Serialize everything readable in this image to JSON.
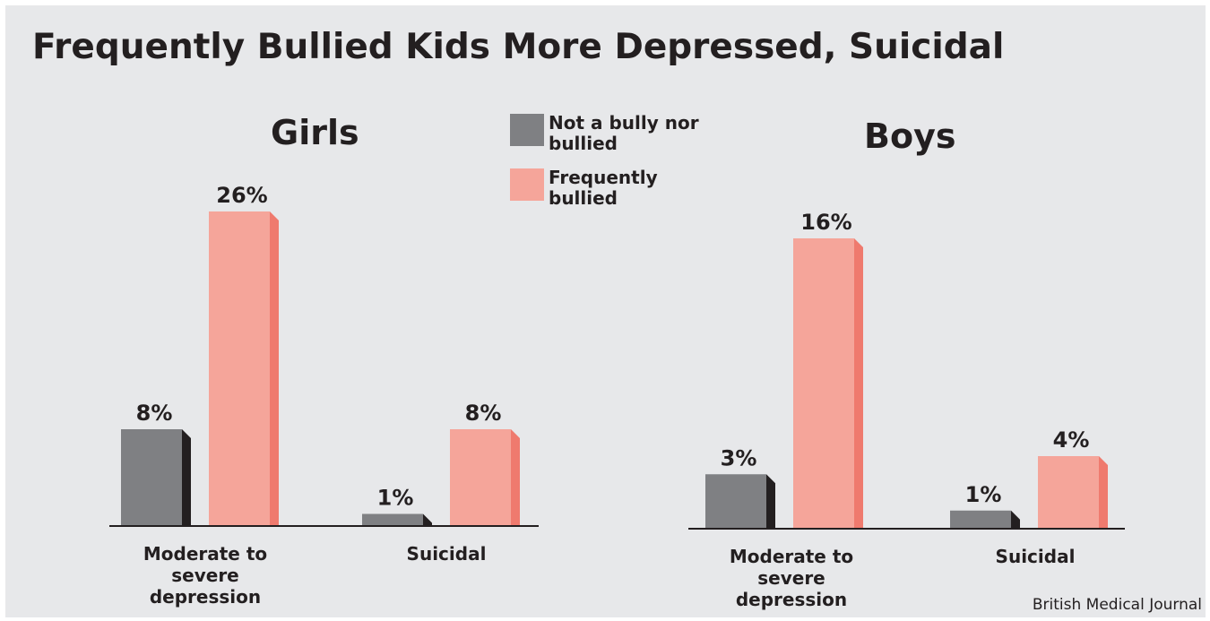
{
  "title": "Frequently Bullied Kids More Depressed, Suicidal",
  "source": "British Medical Journal",
  "legend": [
    {
      "label": "Not a bully nor bullied",
      "color": "#7f8083"
    },
    {
      "label": "Frequently bullied",
      "color": "#f5a59a"
    }
  ],
  "colors": {
    "not_bullied": "#7f8083",
    "not_bullied_side": "#231f20",
    "bullied": "#f5a59a",
    "bullied_side": "#ef7a6e"
  },
  "chart_data": [
    {
      "type": "bar",
      "title": "Girls",
      "categories": [
        "Moderate to severe depression",
        "Suicidal"
      ],
      "category_lines": [
        [
          "Moderate to",
          "severe",
          "depression"
        ],
        [
          "Suicidal"
        ]
      ],
      "series": [
        {
          "name": "Not a bully nor bullied",
          "values": [
            8,
            1
          ],
          "labels": [
            "8%",
            "1%"
          ]
        },
        {
          "name": "Frequently bullied",
          "values": [
            26,
            8
          ],
          "labels": [
            "26%",
            "8%"
          ]
        }
      ]
    },
    {
      "type": "bar",
      "title": "Boys",
      "categories": [
        "Moderate to severe depression",
        "Suicidal"
      ],
      "category_lines": [
        [
          "Moderate to",
          "severe",
          "depression"
        ],
        [
          "Suicidal"
        ]
      ],
      "series": [
        {
          "name": "Not a bully nor bullied",
          "values": [
            3,
            1
          ],
          "labels": [
            "3%",
            "1%"
          ]
        },
        {
          "name": "Frequently bullied",
          "values": [
            16,
            4
          ],
          "labels": [
            "16%",
            "4%"
          ]
        }
      ]
    }
  ]
}
